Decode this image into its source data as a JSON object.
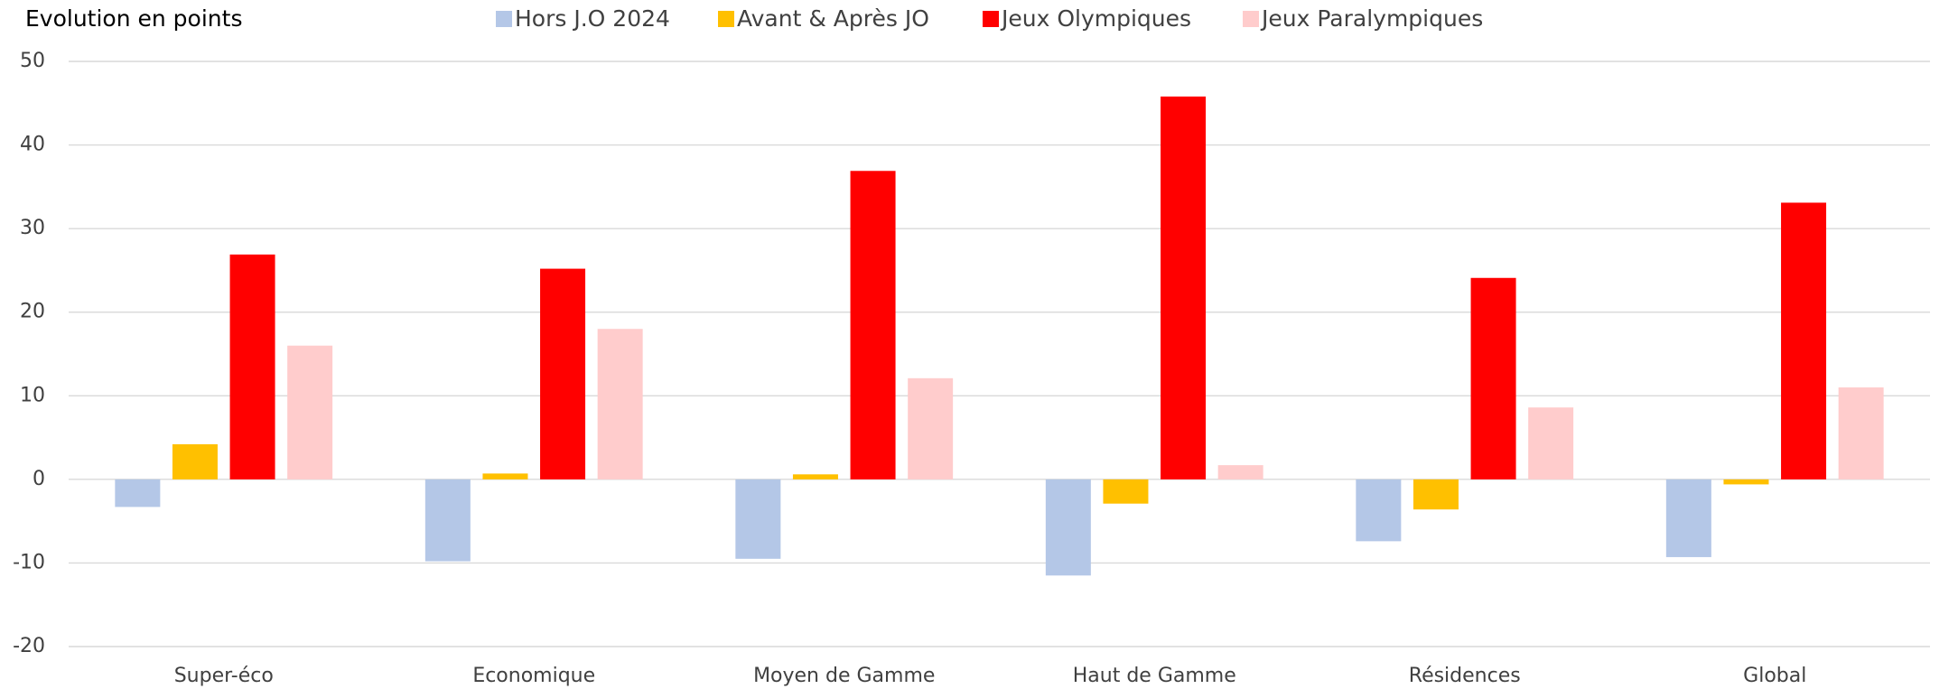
{
  "chart_data": {
    "type": "bar",
    "title": "Evolution en points",
    "categories": [
      "Super-éco",
      "Economique",
      "Moyen de Gamme",
      "Haut de Gamme",
      "Résidences",
      "Global"
    ],
    "series": [
      {
        "name": "Hors J.O 2024",
        "color": "#b4c7e7",
        "values": [
          -3.3,
          -9.8,
          -9.5,
          -11.5,
          -7.4,
          -9.3
        ]
      },
      {
        "name": "Avant & Après JO",
        "color": "#ffc000",
        "values": [
          4.2,
          0.7,
          0.6,
          -2.9,
          -3.6,
          -0.6
        ]
      },
      {
        "name": "Jeux Olympiques",
        "color": "#ff0000",
        "values": [
          26.9,
          25.2,
          36.9,
          45.8,
          24.1,
          33.1
        ]
      },
      {
        "name": "Jeux Paralympiques",
        "color": "#ffcccc",
        "values": [
          16,
          18,
          12.1,
          1.7,
          8.6,
          11
        ]
      }
    ],
    "ylim": [
      -20,
      50
    ],
    "yticks": [
      -20,
      -10,
      0,
      10,
      20,
      30,
      40,
      50
    ],
    "grid": true,
    "legend": "top"
  }
}
